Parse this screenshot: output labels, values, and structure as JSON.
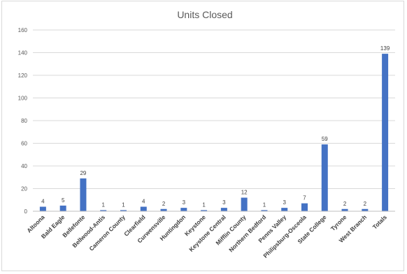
{
  "chart_data": {
    "type": "bar",
    "title": "Units Closed",
    "xlabel": "",
    "ylabel": "",
    "ylim": [
      0,
      160
    ],
    "yticks": [
      0,
      20,
      40,
      60,
      80,
      100,
      120,
      140,
      160
    ],
    "grid": true,
    "legend": "none",
    "bar_color": "#4472c4",
    "categories": [
      "Altoona",
      "Bald Eagle",
      "Bellefonte",
      "Bellwood-Antis",
      "Cameron County",
      "Clearfield",
      "Curwensville",
      "Huntingdon",
      "Keystone",
      "Keystone Central",
      "Mifflin County",
      "Northern Bedford",
      "Penns Valley",
      "Philipsburg-Osceola",
      "State College",
      "Tyrone",
      "West Branch",
      "Totals"
    ],
    "values": [
      4,
      5,
      29,
      1,
      1,
      4,
      2,
      3,
      1,
      3,
      12,
      1,
      3,
      7,
      59,
      2,
      2,
      139
    ]
  }
}
